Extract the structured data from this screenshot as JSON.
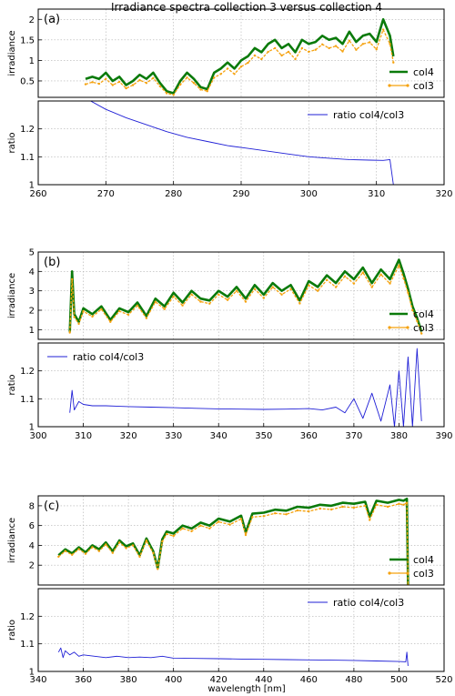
{
  "figure": {
    "title": "Irradiance spectra collection 3 versus collection 4",
    "xlabel": "wavelength [nm]"
  },
  "colors": {
    "col4": "#0a7a0a",
    "col3": "#f5a20f",
    "ratio": "#1f1fd6"
  },
  "chart_data": [
    {
      "type": "line",
      "panel": "(a)",
      "legend_placement": "right",
      "grid": true,
      "xlim": [
        260,
        320
      ],
      "xticks": [
        260,
        270,
        280,
        290,
        300,
        310,
        320
      ],
      "irradiance": {
        "ylabel": "irradiance",
        "yticks": [
          0.5,
          1.0,
          1.5,
          2.0
        ],
        "ylim": [
          0.1,
          2.25
        ],
        "series": [
          {
            "name": "col4",
            "x": [
              267,
              268,
              269,
              270,
              271,
              272,
              273,
              274,
              275,
              276,
              277,
              278,
              279,
              280,
              281,
              282,
              283,
              284,
              285,
              286,
              287,
              288,
              289,
              290,
              291,
              292,
              293,
              294,
              295,
              296,
              297,
              298,
              299,
              300,
              301,
              302,
              303,
              304,
              305,
              306,
              307,
              308,
              309,
              310,
              311,
              312,
              312.5
            ],
            "y": [
              0.55,
              0.6,
              0.55,
              0.7,
              0.5,
              0.6,
              0.4,
              0.5,
              0.65,
              0.55,
              0.7,
              0.45,
              0.25,
              0.2,
              0.5,
              0.7,
              0.55,
              0.35,
              0.3,
              0.7,
              0.8,
              0.95,
              0.8,
              1.0,
              1.1,
              1.3,
              1.2,
              1.4,
              1.5,
              1.3,
              1.4,
              1.2,
              1.5,
              1.4,
              1.45,
              1.6,
              1.5,
              1.55,
              1.4,
              1.7,
              1.45,
              1.6,
              1.65,
              1.45,
              2.0,
              1.6,
              1.1
            ]
          },
          {
            "name": "col3",
            "x": [
              267,
              268,
              269,
              270,
              271,
              272,
              273,
              274,
              275,
              276,
              277,
              278,
              279,
              280,
              281,
              282,
              283,
              284,
              285,
              286,
              287,
              288,
              289,
              290,
              291,
              292,
              293,
              294,
              295,
              296,
              297,
              298,
              299,
              300,
              301,
              302,
              303,
              304,
              305,
              306,
              307,
              308,
              309,
              310,
              311,
              312,
              312.5
            ],
            "y": [
              0.42,
              0.47,
              0.43,
              0.55,
              0.4,
              0.48,
              0.32,
              0.4,
              0.52,
              0.45,
              0.57,
              0.37,
              0.2,
              0.16,
              0.41,
              0.58,
              0.45,
              0.29,
              0.25,
              0.58,
              0.67,
              0.8,
              0.67,
              0.85,
              0.94,
              1.12,
              1.03,
              1.21,
              1.3,
              1.12,
              1.21,
              1.03,
              1.3,
              1.21,
              1.26,
              1.39,
              1.3,
              1.35,
              1.22,
              1.48,
              1.26,
              1.4,
              1.44,
              1.27,
              1.75,
              1.4,
              0.95
            ]
          }
        ]
      },
      "ratio": {
        "ylabel": "ratio",
        "yticks": [
          1.0,
          1.1,
          1.2
        ],
        "ylim": [
          1.0,
          1.3
        ],
        "series": [
          {
            "name": "ratio col4/col3",
            "x": [
              267,
              270,
              273,
              276,
              279,
              282,
              285,
              288,
              291,
              294,
              297,
              300,
              303,
              306,
              309,
              311,
              312,
              312.5
            ],
            "y": [
              1.31,
              1.27,
              1.24,
              1.215,
              1.19,
              1.17,
              1.155,
              1.14,
              1.13,
              1.12,
              1.11,
              1.1,
              1.095,
              1.09,
              1.088,
              1.087,
              1.09,
              1.0
            ]
          }
        ]
      }
    },
    {
      "type": "line",
      "panel": "(b)",
      "legend_placement": "right",
      "grid": true,
      "xlim": [
        300,
        390
      ],
      "xticks": [
        300,
        310,
        320,
        330,
        340,
        350,
        360,
        370,
        380,
        390
      ],
      "irradiance": {
        "ylabel": "irradiance",
        "yticks": [
          1,
          2,
          3,
          4,
          5
        ],
        "ylim": [
          0.5,
          5
        ],
        "series": [
          {
            "name": "col4",
            "x": [
              307,
              307.5,
              308,
              309,
              310,
              312,
              314,
              316,
              318,
              320,
              322,
              324,
              326,
              328,
              330,
              332,
              334,
              336,
              338,
              340,
              342,
              344,
              346,
              348,
              350,
              352,
              354,
              356,
              358,
              360,
              362,
              364,
              366,
              368,
              370,
              372,
              374,
              376,
              378,
              380,
              381,
              382,
              383,
              384,
              385
            ],
            "y": [
              0.9,
              4.0,
              1.8,
              1.4,
              2.1,
              1.8,
              2.2,
              1.5,
              2.1,
              1.9,
              2.4,
              1.7,
              2.6,
              2.2,
              2.9,
              2.4,
              3.0,
              2.6,
              2.5,
              3.0,
              2.7,
              3.2,
              2.6,
              3.3,
              2.8,
              3.4,
              3.0,
              3.3,
              2.5,
              3.5,
              3.2,
              3.8,
              3.4,
              4.0,
              3.6,
              4.2,
              3.4,
              4.1,
              3.6,
              4.6,
              3.9,
              3.1,
              2.2,
              1.6,
              0.9
            ]
          },
          {
            "name": "col3",
            "x": [
              307,
              307.5,
              308,
              309,
              310,
              312,
              314,
              316,
              318,
              320,
              322,
              324,
              326,
              328,
              330,
              332,
              334,
              336,
              338,
              340,
              342,
              344,
              346,
              348,
              350,
              352,
              354,
              356,
              358,
              360,
              362,
              364,
              366,
              368,
              370,
              372,
              374,
              376,
              378,
              380,
              381,
              382,
              383,
              384,
              385
            ],
            "y": [
              0.85,
              3.6,
              1.65,
              1.3,
              1.95,
              1.67,
              2.05,
              1.4,
              1.95,
              1.77,
              2.24,
              1.59,
              2.43,
              2.06,
              2.71,
              2.25,
              2.81,
              2.44,
              2.34,
              2.81,
              2.53,
              3.0,
              2.44,
              3.09,
              2.63,
              3.19,
              2.81,
              3.09,
              2.35,
              3.28,
              3.0,
              3.56,
              3.19,
              3.75,
              3.38,
              3.94,
              3.19,
              3.84,
              3.38,
              4.31,
              3.65,
              2.9,
              2.0,
              1.45,
              0.8
            ]
          }
        ]
      },
      "ratio": {
        "ylabel": "ratio",
        "yticks": [
          1.0,
          1.1,
          1.2
        ],
        "ylim": [
          1.0,
          1.3
        ],
        "series": [
          {
            "name": "ratio col4/col3",
            "x": [
              307,
              307.5,
              308,
              309,
              310,
              312,
              315,
              320,
              325,
              330,
              335,
              340,
              345,
              350,
              355,
              360,
              363,
              366,
              368,
              370,
              372,
              374,
              376,
              378,
              379,
              380,
              381,
              382,
              383,
              384,
              385
            ],
            "y": [
              1.05,
              1.13,
              1.06,
              1.09,
              1.08,
              1.075,
              1.075,
              1.072,
              1.07,
              1.068,
              1.066,
              1.064,
              1.063,
              1.062,
              1.063,
              1.065,
              1.06,
              1.07,
              1.05,
              1.1,
              1.03,
              1.12,
              1.02,
              1.15,
              1.0,
              1.2,
              1.0,
              1.25,
              1.0,
              1.28,
              1.02
            ]
          }
        ]
      }
    },
    {
      "type": "line",
      "panel": "(c)",
      "legend_placement": "right",
      "grid": true,
      "xlim": [
        340,
        520
      ],
      "xticks": [
        340,
        360,
        380,
        400,
        420,
        440,
        460,
        480,
        500,
        520
      ],
      "irradiance": {
        "ylabel": "irradiance",
        "yticks": [
          2,
          4,
          6,
          8
        ],
        "ylim": [
          0,
          9
        ],
        "series": [
          {
            "name": "col4",
            "x": [
              349,
              352,
              355,
              358,
              361,
              364,
              367,
              370,
              373,
              376,
              379,
              382,
              385,
              388,
              391,
              393,
              395,
              397,
              400,
              404,
              408,
              412,
              416,
              420,
              425,
              430,
              432,
              435,
              440,
              445,
              450,
              455,
              460,
              465,
              470,
              475,
              480,
              485,
              487,
              490,
              495,
              500,
              502,
              503.5,
              504
            ],
            "y": [
              3.0,
              3.6,
              3.2,
              3.8,
              3.3,
              4.0,
              3.6,
              4.3,
              3.4,
              4.5,
              3.9,
              4.2,
              3.0,
              4.7,
              3.4,
              1.7,
              4.6,
              5.4,
              5.2,
              6.0,
              5.7,
              6.3,
              6.0,
              6.7,
              6.4,
              7.0,
              5.3,
              7.2,
              7.3,
              7.6,
              7.5,
              7.9,
              7.8,
              8.1,
              8.0,
              8.3,
              8.2,
              8.4,
              6.9,
              8.5,
              8.3,
              8.6,
              8.5,
              8.7,
              0
            ]
          },
          {
            "name": "col3",
            "x": [
              349,
              352,
              355,
              358,
              361,
              364,
              367,
              370,
              373,
              376,
              379,
              382,
              385,
              388,
              391,
              393,
              395,
              397,
              400,
              404,
              408,
              412,
              416,
              420,
              425,
              430,
              432,
              435,
              440,
              445,
              450,
              455,
              460,
              465,
              470,
              475,
              480,
              485,
              487,
              490,
              495,
              500,
              502,
              503.5,
              504
            ],
            "y": [
              2.86,
              3.43,
              3.05,
              3.62,
              3.15,
              3.81,
              3.43,
              4.1,
              3.24,
              4.29,
              3.72,
              4.0,
              2.86,
              4.48,
              3.24,
              1.62,
              4.38,
              5.14,
              4.95,
              5.71,
              5.43,
              6.0,
              5.71,
              6.38,
              6.1,
              6.67,
              5.05,
              6.86,
              6.95,
              7.24,
              7.14,
              7.52,
              7.43,
              7.71,
              7.62,
              7.9,
              7.81,
              8.0,
              6.57,
              8.1,
              7.9,
              8.19,
              8.1,
              8.29,
              0
            ]
          }
        ]
      },
      "ratio": {
        "ylabel": "ratio",
        "yticks": [
          1.0,
          1.1,
          1.2
        ],
        "ylim": [
          1.0,
          1.3
        ],
        "series": [
          {
            "name": "ratio col4/col3",
            "x": [
              349,
              350,
              351,
              352,
              354,
              356,
              358,
              360,
              365,
              370,
              375,
              380,
              385,
              390,
              395,
              400,
              410,
              420,
              430,
              440,
              450,
              460,
              470,
              480,
              490,
              500,
              503,
              503.5,
              504
            ],
            "y": [
              1.07,
              1.085,
              1.05,
              1.075,
              1.06,
              1.07,
              1.055,
              1.06,
              1.055,
              1.05,
              1.055,
              1.05,
              1.052,
              1.05,
              1.055,
              1.048,
              1.047,
              1.046,
              1.045,
              1.044,
              1.043,
              1.042,
              1.041,
              1.04,
              1.038,
              1.036,
              1.035,
              1.07,
              1.02
            ]
          }
        ]
      }
    }
  ]
}
